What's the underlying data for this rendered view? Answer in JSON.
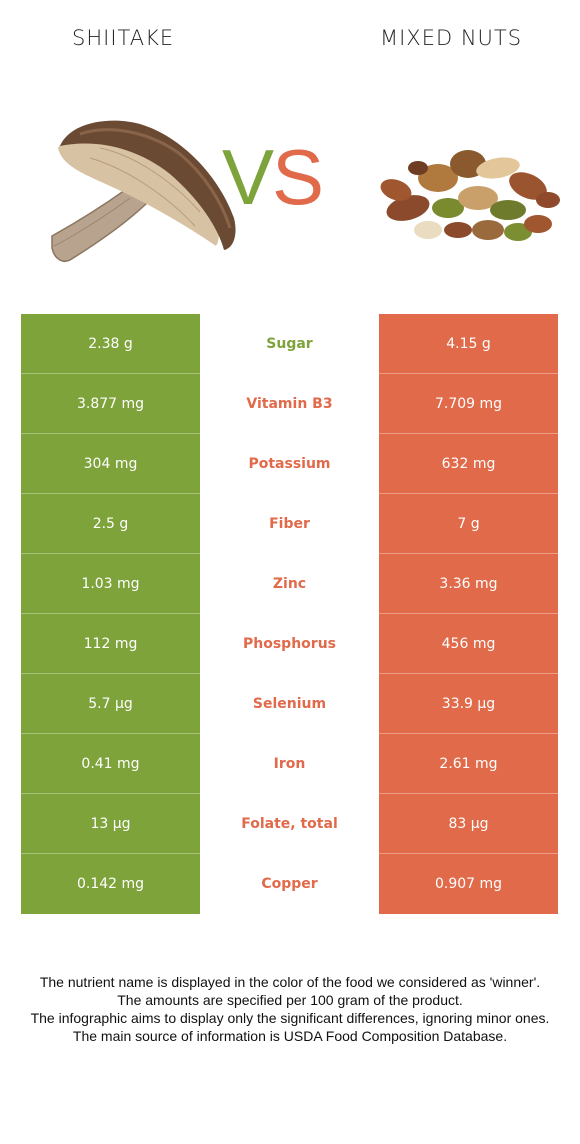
{
  "header": {
    "left_food": "SHIITAKE",
    "right_food": "MIXED NUTS",
    "vs_v": "V",
    "vs_s": "S"
  },
  "colors": {
    "left": "#7ea33a",
    "right": "#e06a4a"
  },
  "rows": [
    {
      "nutrient": "Sugar",
      "left": "2.38 g",
      "right": "4.15 g",
      "winner": "left"
    },
    {
      "nutrient": "Vitamin B3",
      "left": "3.877 mg",
      "right": "7.709 mg",
      "winner": "right"
    },
    {
      "nutrient": "Potassium",
      "left": "304 mg",
      "right": "632 mg",
      "winner": "right"
    },
    {
      "nutrient": "Fiber",
      "left": "2.5 g",
      "right": "7 g",
      "winner": "right"
    },
    {
      "nutrient": "Zinc",
      "left": "1.03 mg",
      "right": "3.36 mg",
      "winner": "right"
    },
    {
      "nutrient": "Phosphorus",
      "left": "112 mg",
      "right": "456 mg",
      "winner": "right"
    },
    {
      "nutrient": "Selenium",
      "left": "5.7 µg",
      "right": "33.9 µg",
      "winner": "right"
    },
    {
      "nutrient": "Iron",
      "left": "0.41 mg",
      "right": "2.61 mg",
      "winner": "right"
    },
    {
      "nutrient": "Folate, total",
      "left": "13 µg",
      "right": "83 µg",
      "winner": "right"
    },
    {
      "nutrient": "Copper",
      "left": "0.142 mg",
      "right": "0.907 mg",
      "winner": "right"
    }
  ],
  "footer": {
    "line1": "The nutrient name is displayed in the color of the food we considered as 'winner'.",
    "line2": "The amounts are specified per 100 gram of the product.",
    "line3": "The infographic aims to display only the significant differences, ignoring minor ones.",
    "line4": "The main source of information is USDA Food Composition Database."
  }
}
